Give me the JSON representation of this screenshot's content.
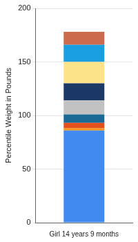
{
  "chart_data": {
    "type": "bar",
    "stacked": true,
    "grid": true,
    "y_label": "Percentile Weight in Pounds",
    "categories": [
      "Girl 14 years 9 months"
    ],
    "series": [
      {
        "color": "#418bf0",
        "values": [
          86
        ]
      },
      {
        "color": "#f7941d",
        "values": [
          2
        ]
      },
      {
        "color": "#e2501c",
        "values": [
          5
        ]
      },
      {
        "color": "#1b6a96",
        "values": [
          8
        ]
      },
      {
        "color": "#c2c2c2",
        "values": [
          13
        ]
      },
      {
        "color": "#1c3867",
        "values": [
          16
        ]
      },
      {
        "color": "#fde38a",
        "values": [
          20
        ]
      },
      {
        "color": "#199ee0",
        "values": [
          16
        ]
      },
      {
        "color": "#cb6a4c",
        "values": [
          12
        ]
      }
    ],
    "ylim": [
      0,
      200
    ],
    "yticks": [
      0,
      50,
      100,
      150,
      200
    ]
  }
}
